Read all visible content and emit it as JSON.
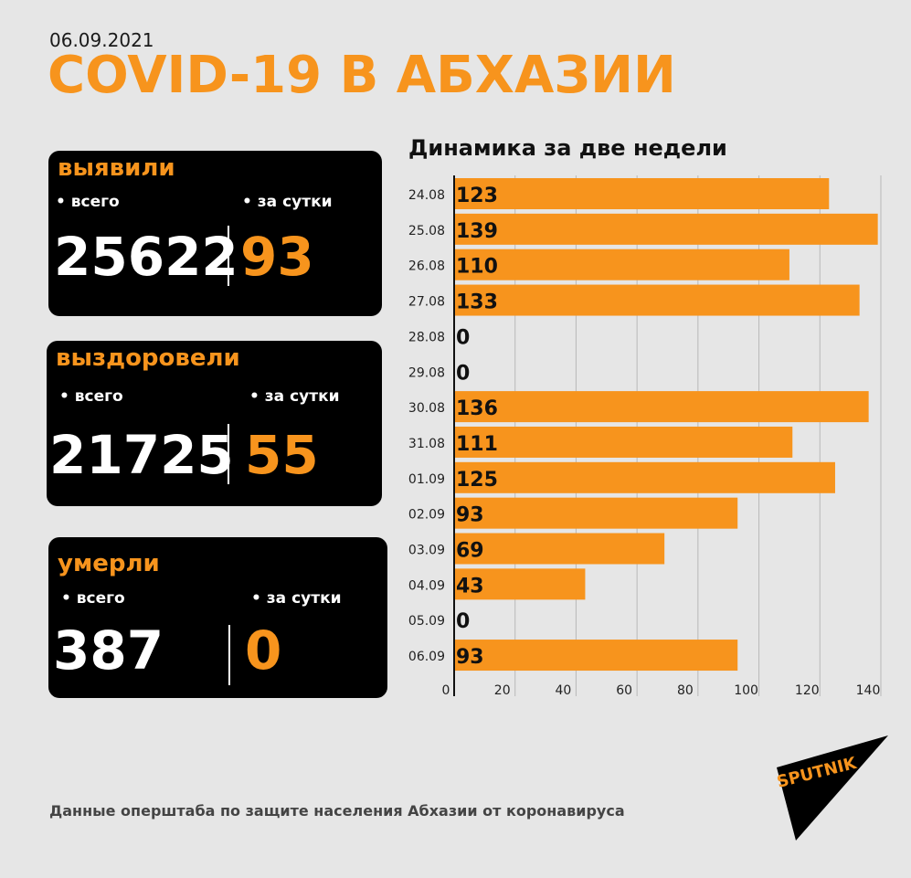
{
  "header": {
    "date": "06.09.2021",
    "title": "COVID-19 В АБХАЗИИ"
  },
  "cards": [
    {
      "heading": "выявили",
      "total_label": "всего",
      "day_label": "за сутки",
      "total": "25622",
      "day": "93"
    },
    {
      "heading": "выздоровели",
      "total_label": "всего",
      "day_label": "за сутки",
      "total": "21725",
      "day": "55"
    },
    {
      "heading": "умерли",
      "total_label": "всего",
      "day_label": "за сутки",
      "total": "387",
      "day": "0"
    }
  ],
  "chart_title": "Динамика за две недели",
  "source": "Данные оперштаба по защите населения Абхазии от коронавируса",
  "logo_text": "SPUTNIK",
  "colors": {
    "accent": "#f7941d",
    "background": "#e6e6e6",
    "card": "#000000"
  },
  "chart_data": {
    "type": "bar",
    "orientation": "horizontal",
    "title": "Динамика за две недели",
    "categories": [
      "24.08",
      "25.08",
      "26.08",
      "27.08",
      "28.08",
      "29.08",
      "30.08",
      "31.08",
      "01.09",
      "02.09",
      "03.09",
      "04.09",
      "05.09",
      "06.09"
    ],
    "values": [
      123,
      139,
      110,
      133,
      0,
      0,
      136,
      111,
      125,
      93,
      69,
      43,
      0,
      93
    ],
    "xlim": [
      0,
      140
    ],
    "xticks": [
      0,
      20,
      40,
      60,
      80,
      100,
      120,
      140
    ],
    "grid": true,
    "data_labels": true,
    "color": "#f7941d"
  }
}
